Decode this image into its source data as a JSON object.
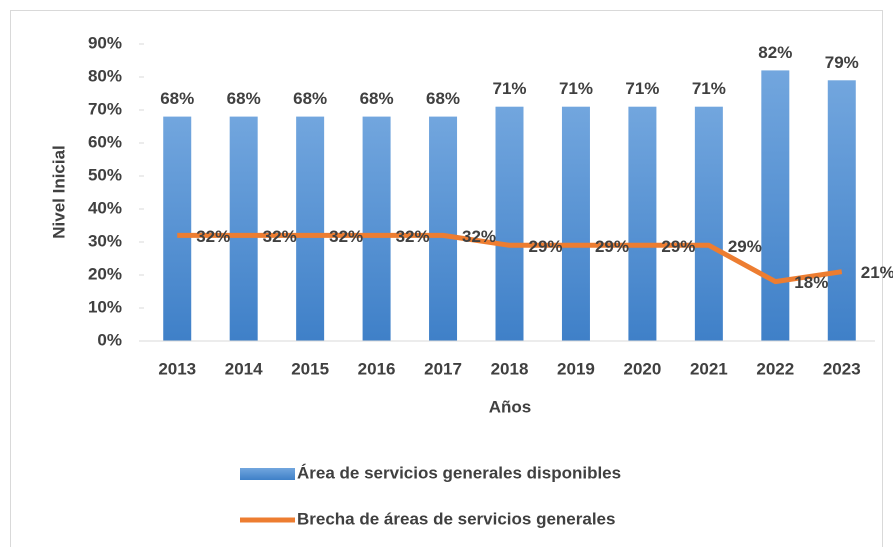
{
  "chart_data": {
    "type": "bar-line",
    "x_label": "Años",
    "y_label": "Nivel Inicial",
    "categories": [
      "2013",
      "2014",
      "2015",
      "2016",
      "2017",
      "2018",
      "2019",
      "2020",
      "2021",
      "2022",
      "2023"
    ],
    "series": [
      {
        "name": "Área de servicios generales disponibles",
        "type": "bar",
        "color": "#5b9bd5",
        "values": [
          68,
          68,
          68,
          68,
          68,
          71,
          71,
          71,
          71,
          82,
          79
        ],
        "value_labels": [
          "68%",
          "68%",
          "68%",
          "68%",
          "68%",
          "71%",
          "71%",
          "71%",
          "71%",
          "82%",
          "79%"
        ]
      },
      {
        "name": "Brecha de áreas de servicios generales",
        "type": "line",
        "color": "#ed7d31",
        "values": [
          32,
          32,
          32,
          32,
          32,
          29,
          29,
          29,
          29,
          18,
          21
        ],
        "value_labels": [
          "32%",
          "32%",
          "32%",
          "32%",
          "32%",
          "29%",
          "29%",
          "29%",
          "29%",
          "18%",
          "21%"
        ]
      }
    ],
    "ylim": [
      0,
      90
    ],
    "yticks": [
      {
        "value": 0,
        "label": "0%"
      },
      {
        "value": 10,
        "label": "10%"
      },
      {
        "value": 20,
        "label": "20%"
      },
      {
        "value": 30,
        "label": "30%"
      },
      {
        "value": 40,
        "label": "40%"
      },
      {
        "value": 50,
        "label": "50%"
      },
      {
        "value": 60,
        "label": "60%"
      },
      {
        "value": 70,
        "label": "70%"
      },
      {
        "value": 80,
        "label": "80%"
      },
      {
        "value": 90,
        "label": "90%"
      }
    ],
    "legend": "bottom"
  }
}
